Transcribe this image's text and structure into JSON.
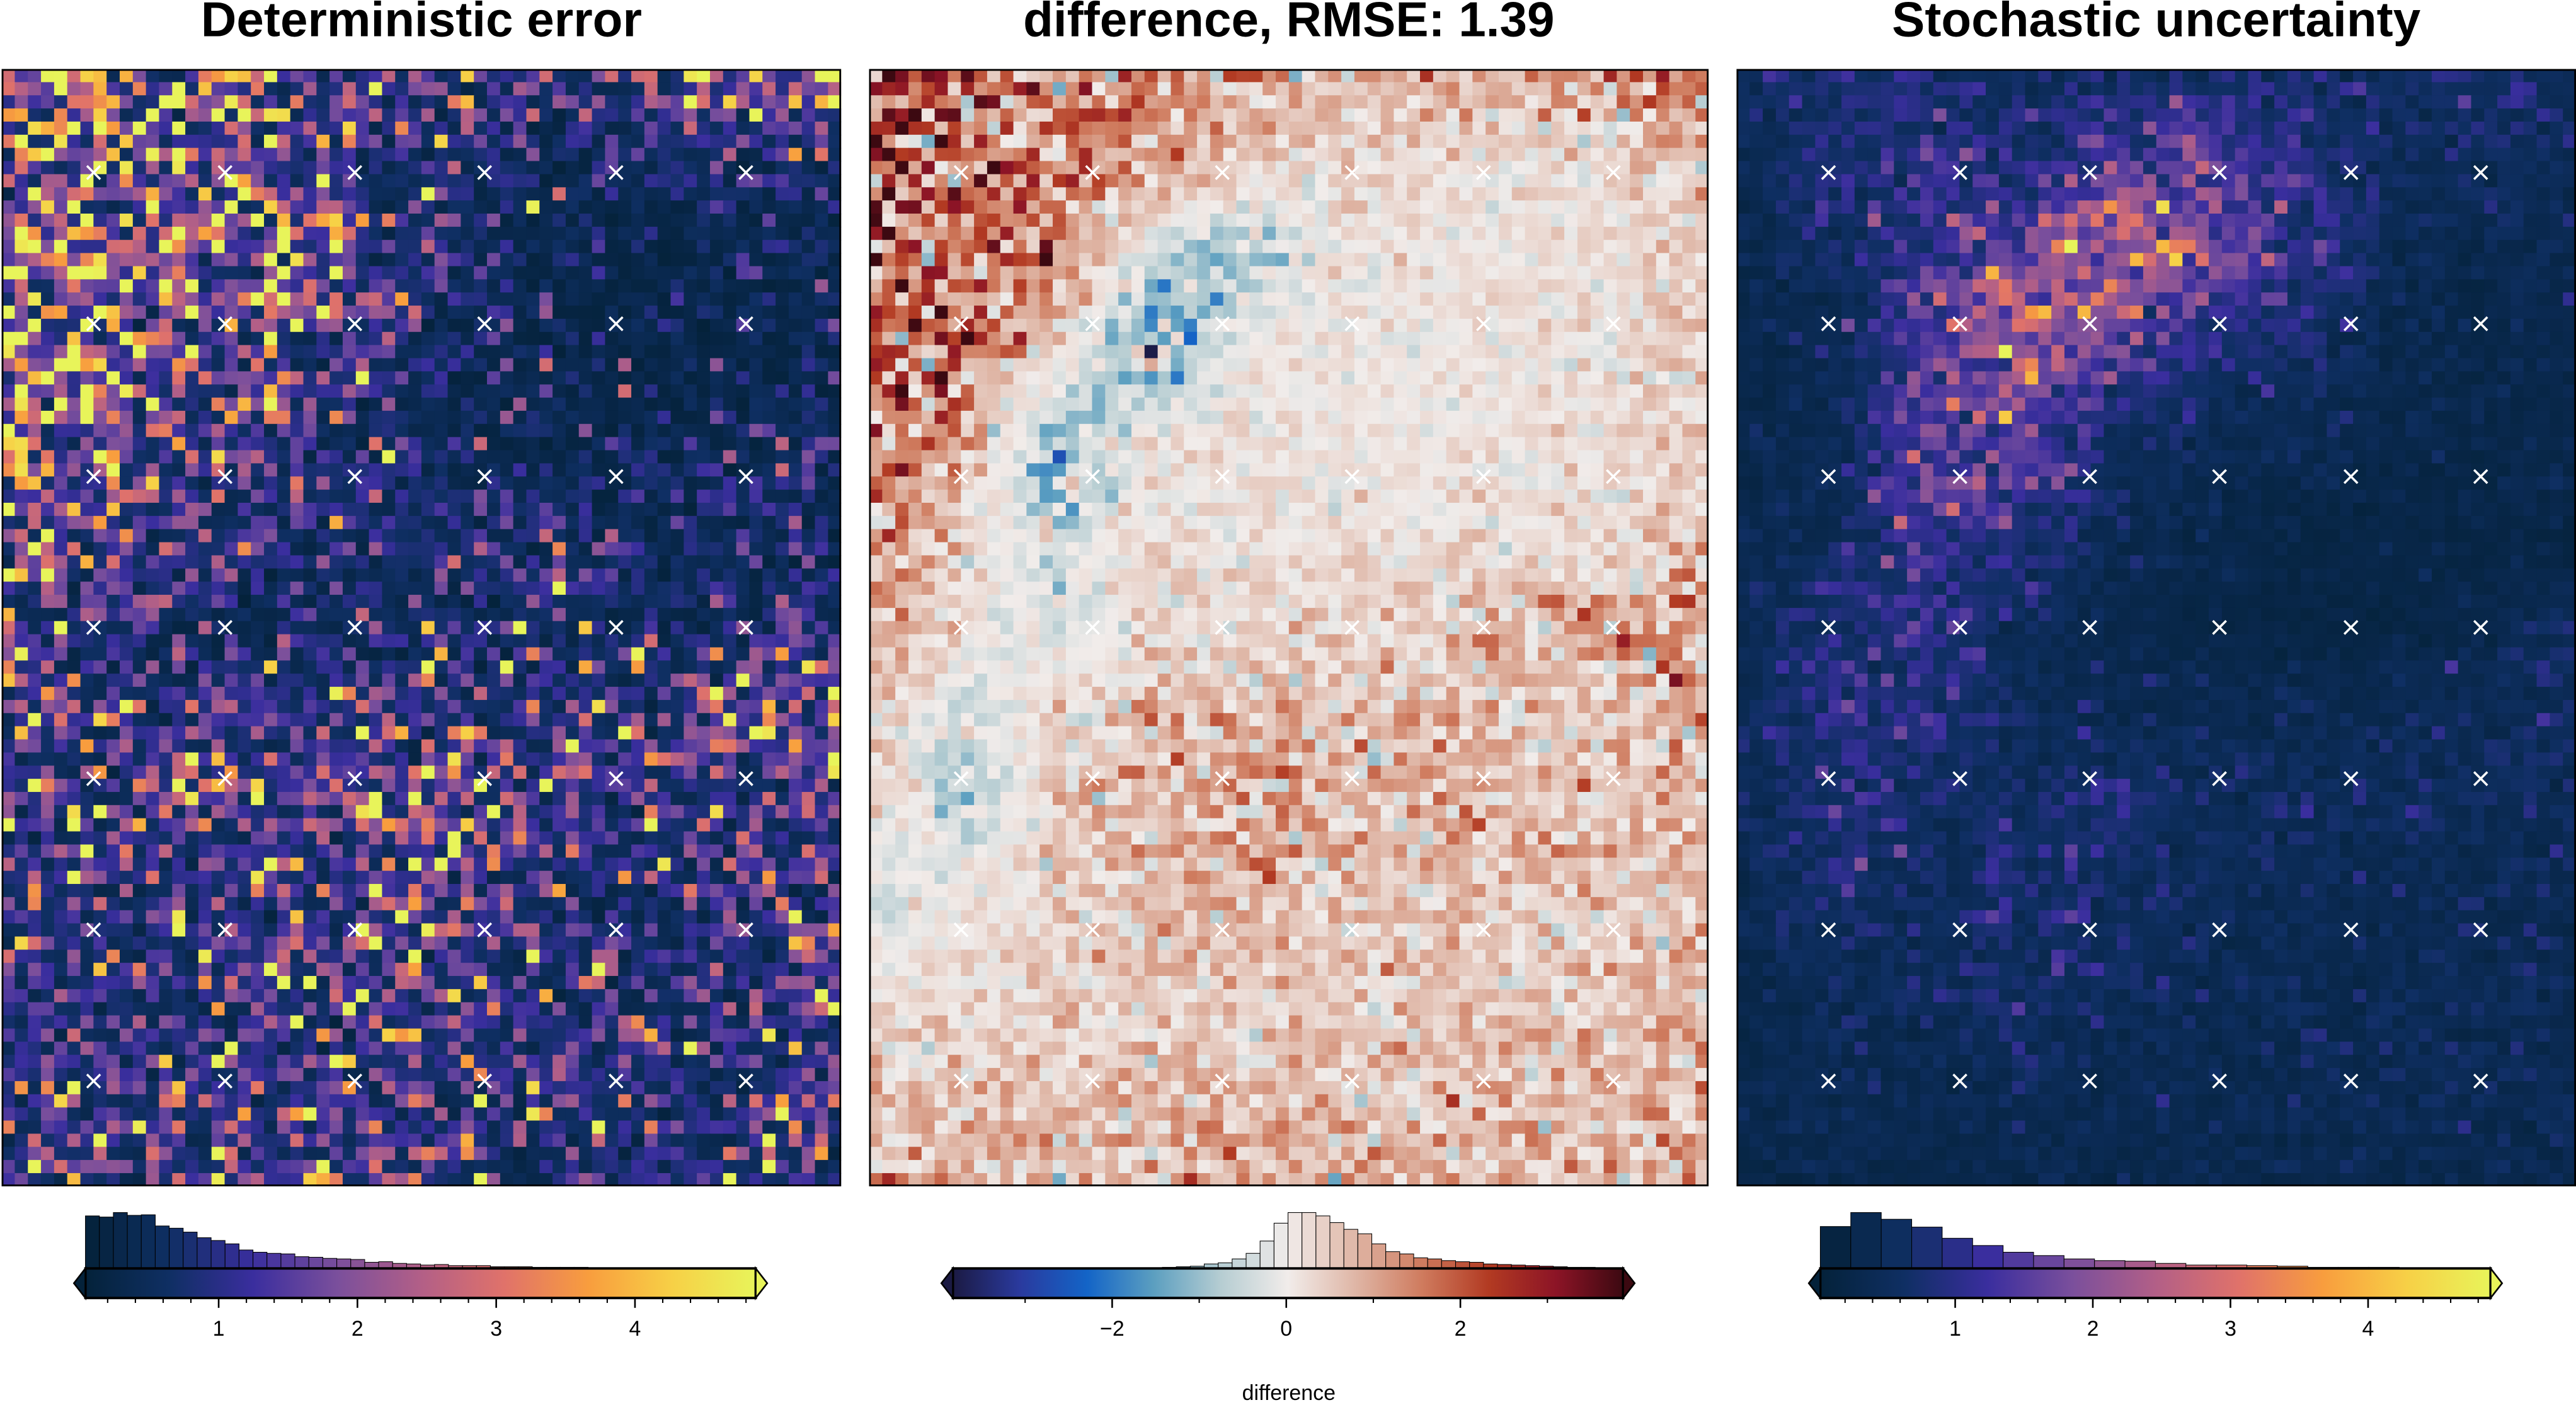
{
  "chart_data": [
    {
      "type": "heatmap",
      "title": "Deterministic error",
      "colormap": [
        "#04223a",
        "#0f2f63",
        "#3a2e9e",
        "#7a4f9c",
        "#b25f87",
        "#e0726a",
        "#f89d3e",
        "#f7d046",
        "#e8f45a"
      ],
      "colorbar": {
        "range": [
          0.04,
          4.87
        ],
        "ticks": [
          1,
          2,
          3,
          4
        ],
        "tick_labels": [
          "1",
          "2",
          "3",
          "4"
        ],
        "minor_step": 0.2,
        "label": "",
        "extend": "both"
      },
      "coarse_grid": [
        [
          2.5,
          2.0,
          2.0,
          1.5,
          1.2,
          1.2,
          1.0,
          1.5,
          2.0,
          2.5
        ],
        [
          2.2,
          2.0,
          1.8,
          1.6,
          1.2,
          0.8,
          0.5,
          0.5,
          0.6,
          0.5
        ],
        [
          2.5,
          2.0,
          1.8,
          2.2,
          1.3,
          0.6,
          0.4,
          0.3,
          0.4,
          0.5
        ],
        [
          2.0,
          1.8,
          1.5,
          1.2,
          1.0,
          0.5,
          0.3,
          0.3,
          0.3,
          0.4
        ],
        [
          2.2,
          1.5,
          1.2,
          0.9,
          0.8,
          0.5,
          0.4,
          0.5,
          0.6,
          0.6
        ],
        [
          1.8,
          1.4,
          1.0,
          0.8,
          0.7,
          0.6,
          0.5,
          0.5,
          0.5,
          0.5
        ],
        [
          1.5,
          1.0,
          0.6,
          0.5,
          0.6,
          0.7,
          0.8,
          0.7,
          0.7,
          1.0
        ],
        [
          1.2,
          1.0,
          0.9,
          1.0,
          1.2,
          1.0,
          1.0,
          1.2,
          1.3,
          2.0
        ],
        [
          1.2,
          1.3,
          1.6,
          1.4,
          1.6,
          1.8,
          1.2,
          1.0,
          1.0,
          1.2
        ],
        [
          1.2,
          1.0,
          1.2,
          1.3,
          1.2,
          1.0,
          0.8,
          0.7,
          0.8,
          1.0
        ],
        [
          1.0,
          1.0,
          1.0,
          1.2,
          1.3,
          1.0,
          0.8,
          0.8,
          0.8,
          1.2
        ],
        [
          1.0,
          1.0,
          1.0,
          1.1,
          1.1,
          1.0,
          0.9,
          0.8,
          0.8,
          1.2
        ],
        [
          1.5,
          1.2,
          1.0,
          1.0,
          1.0,
          1.0,
          0.8,
          0.8,
          0.7,
          0.8
        ]
      ],
      "histogram": [
        94,
        92,
        100,
        95,
        96,
        76,
        72,
        65,
        55,
        50,
        44,
        33,
        29,
        27,
        26,
        21,
        20,
        18,
        17,
        16,
        11,
        12,
        9,
        8,
        6,
        7,
        5,
        5,
        5,
        3,
        3,
        3,
        2,
        2,
        2,
        2,
        1,
        1,
        1,
        1,
        1,
        1,
        1,
        1,
        1,
        1,
        1,
        1
      ],
      "markers": {
        "symbol": "×",
        "cols": 6,
        "rows": 7
      }
    },
    {
      "type": "heatmap",
      "title": "difference, RMSE: 1.39",
      "colormap": [
        "#1b1a43",
        "#2a3a9e",
        "#1364c7",
        "#5c9fc0",
        "#b6cdd2",
        "#f1ecea",
        "#dfb6a6",
        "#cf7b5e",
        "#b23a22",
        "#8c1426",
        "#3c0911"
      ],
      "colorbar": {
        "range": [
          -3.83,
          3.87
        ],
        "ticks": [
          -2,
          0,
          2
        ],
        "tick_labels": [
          "−2",
          "0",
          "2"
        ],
        "minor_step": 1,
        "label": "difference",
        "extend": "both"
      },
      "coarse_grid": [
        [
          2.0,
          1.5,
          1.5,
          1.2,
          1.0,
          0.8,
          0.8,
          0.8,
          1.0,
          1.5
        ],
        [
          2.0,
          1.8,
          1.5,
          1.0,
          0.5,
          0.3,
          0.2,
          0.2,
          0.3,
          0.5
        ],
        [
          2.0,
          1.8,
          1.2,
          -0.5,
          -1.0,
          0.2,
          0.1,
          0.1,
          0.2,
          0.4
        ],
        [
          1.8,
          1.5,
          0.3,
          -1.5,
          0.1,
          0.1,
          0.0,
          0.1,
          0.2,
          0.4
        ],
        [
          1.5,
          0.8,
          -1.2,
          0.2,
          0.1,
          0.1,
          0.1,
          0.1,
          0.2,
          0.4
        ],
        [
          1.2,
          0.5,
          -0.5,
          0.2,
          0.1,
          0.1,
          0.1,
          0.2,
          0.2,
          0.4
        ],
        [
          0.8,
          0.1,
          -0.3,
          0.3,
          0.3,
          0.3,
          0.5,
          0.8,
          1.0,
          1.5
        ],
        [
          0.5,
          -0.5,
          0.4,
          0.8,
          0.8,
          0.8,
          0.8,
          0.6,
          0.6,
          0.8
        ],
        [
          0.3,
          -0.6,
          0.5,
          0.8,
          1.0,
          0.9,
          0.8,
          0.7,
          0.6,
          0.6
        ],
        [
          -0.3,
          0.1,
          0.3,
          0.6,
          0.7,
          0.6,
          0.5,
          0.5,
          0.6,
          0.7
        ],
        [
          0.2,
          0.3,
          0.4,
          0.4,
          0.4,
          0.4,
          0.4,
          0.4,
          0.5,
          0.8
        ],
        [
          0.4,
          0.5,
          0.6,
          0.6,
          0.6,
          0.6,
          0.6,
          0.6,
          0.6,
          0.8
        ],
        [
          0.8,
          0.8,
          0.8,
          0.8,
          0.8,
          0.8,
          0.8,
          0.8,
          0.8,
          1.0
        ]
      ],
      "histogram": [
        0,
        0,
        0,
        0,
        0,
        0,
        0,
        0,
        0,
        0,
        0,
        0,
        0,
        1,
        1,
        2,
        3,
        4,
        8,
        10,
        17,
        27,
        49,
        81,
        100,
        100,
        94,
        82,
        70,
        62,
        44,
        30,
        26,
        19,
        17,
        14,
        12,
        11,
        8,
        7,
        6,
        5,
        4,
        3,
        2,
        2,
        1,
        1
      ],
      "markers": {
        "symbol": "×",
        "cols": 6,
        "rows": 7
      }
    },
    {
      "type": "heatmap",
      "title": "Stochastic uncertainty",
      "colormap": [
        "#04223a",
        "#0f2f63",
        "#3a2e9e",
        "#7a4f9c",
        "#b25f87",
        "#e0726a",
        "#f89d3e",
        "#f7d046",
        "#e8f45a"
      ],
      "colorbar": {
        "range": [
          0.02,
          4.89
        ],
        "ticks": [
          1,
          2,
          3,
          4
        ],
        "tick_labels": [
          "1",
          "2",
          "3",
          "4"
        ],
        "minor_step": 0.2,
        "label": "",
        "extend": "both"
      },
      "coarse_grid": [
        [
          0.6,
          0.8,
          0.8,
          0.6,
          0.6,
          0.6,
          0.6,
          0.6,
          0.8,
          0.5
        ],
        [
          0.4,
          0.8,
          1.0,
          0.8,
          1.2,
          1.5,
          1.0,
          0.5,
          0.5,
          0.5
        ],
        [
          0.3,
          0.6,
          1.2,
          1.8,
          3.0,
          1.8,
          1.2,
          0.4,
          0.3,
          0.4
        ],
        [
          0.3,
          0.4,
          1.2,
          2.2,
          1.5,
          0.8,
          0.6,
          0.3,
          0.3,
          0.3
        ],
        [
          0.3,
          0.4,
          1.5,
          1.6,
          0.6,
          0.4,
          0.4,
          0.3,
          0.3,
          0.3
        ],
        [
          0.3,
          0.5,
          1.3,
          0.8,
          0.4,
          0.3,
          0.2,
          0.2,
          0.2,
          0.2
        ],
        [
          0.4,
          0.8,
          1.0,
          0.5,
          0.3,
          0.2,
          0.2,
          0.2,
          0.3,
          0.5
        ],
        [
          0.4,
          1.0,
          0.8,
          0.5,
          0.4,
          0.4,
          0.4,
          0.4,
          0.5,
          0.6
        ],
        [
          0.4,
          0.8,
          0.6,
          0.6,
          0.8,
          0.5,
          0.5,
          0.5,
          0.5,
          0.5
        ],
        [
          0.4,
          0.6,
          0.5,
          0.7,
          0.6,
          0.5,
          0.4,
          0.4,
          0.4,
          0.4
        ],
        [
          0.3,
          0.4,
          0.5,
          0.6,
          0.5,
          0.4,
          0.4,
          0.4,
          0.4,
          0.4
        ],
        [
          0.3,
          0.4,
          0.4,
          0.4,
          0.4,
          0.4,
          0.4,
          0.4,
          0.4,
          0.4
        ],
        [
          0.3,
          0.3,
          0.3,
          0.3,
          0.3,
          0.3,
          0.3,
          0.3,
          0.3,
          0.3
        ]
      ],
      "histogram": [
        75,
        100,
        88,
        74,
        54,
        41,
        29,
        23,
        17,
        14,
        13,
        9,
        6,
        6,
        5,
        4,
        2,
        2,
        2,
        1,
        1,
        1
      ],
      "markers": {
        "symbol": "×",
        "cols": 6,
        "rows": 7
      }
    }
  ]
}
